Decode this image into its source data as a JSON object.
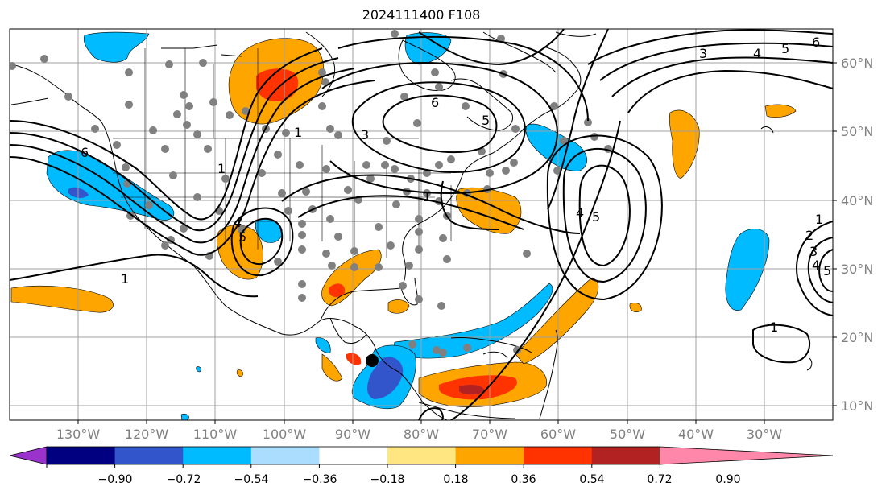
{
  "title": "2024111400 F108",
  "lon_labels": [
    "130°W",
    "120°W",
    "110°W",
    "100°W",
    "90°W",
    "80°W",
    "70°W",
    "60°W",
    "50°W",
    "40°W",
    "30°W"
  ],
  "lat_labels": [
    "60°N",
    "50°N",
    "40°N",
    "30°N",
    "20°N",
    "10°N"
  ],
  "colorbar": {
    "ticks": [
      "−0.90",
      "−0.72",
      "−0.54",
      "−0.36",
      "−0.18",
      "0.18",
      "0.36",
      "0.54",
      "0.72",
      "0.90"
    ],
    "colors": [
      "#9933cc",
      "#000080",
      "#3355cc",
      "#00bbff",
      "#aaddff",
      "#ffffff",
      "#ffe680",
      "#ffa500",
      "#ff3300",
      "#b22222",
      "#ff88aa"
    ]
  },
  "contour_labels": [
    "6",
    "5",
    "4",
    "3",
    "6",
    "5",
    "4",
    "3",
    "2",
    "1",
    "4",
    "5",
    "6",
    "1",
    "1",
    "3",
    "4",
    "5",
    "1",
    "1",
    "5",
    "6",
    "1"
  ],
  "colors": {
    "grid": "#a0a0a0",
    "coast": "#000000",
    "contour": "#000000",
    "station": "#808080",
    "pos1": "#ffa500",
    "pos2": "#ff3300",
    "pos3": "#b22222",
    "neg1": "#00bbff",
    "neg2": "#3355cc"
  }
}
